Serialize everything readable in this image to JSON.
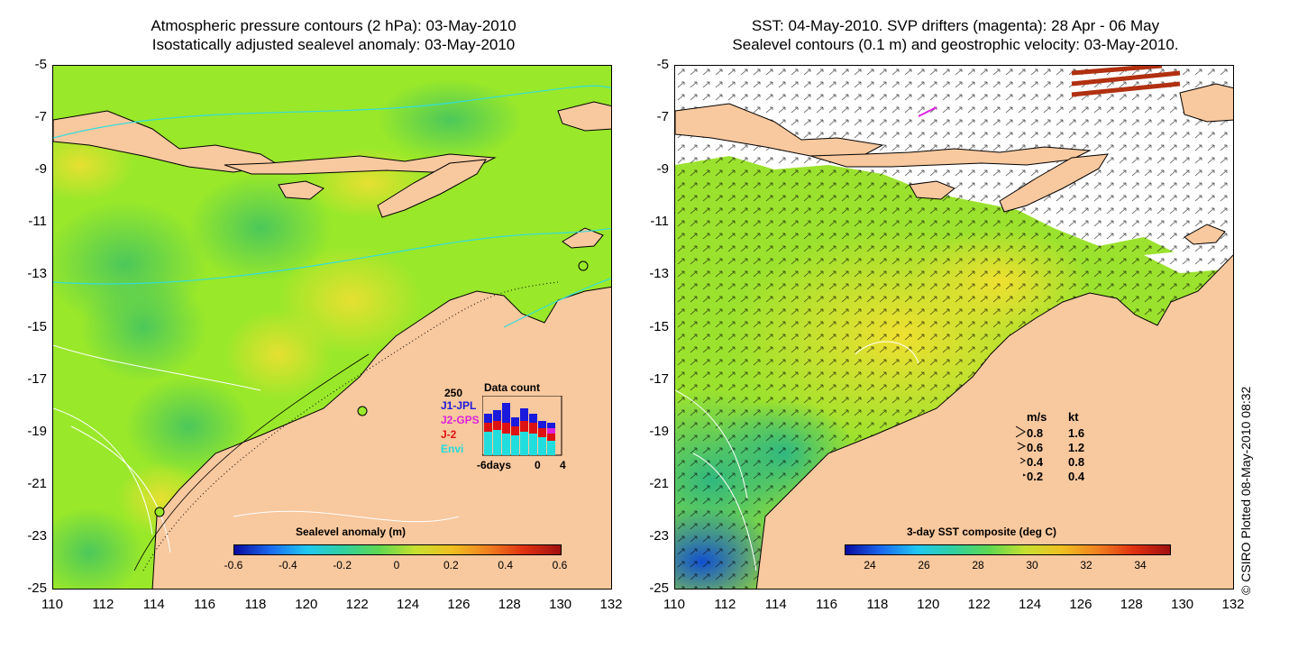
{
  "left_panel": {
    "title_line1": "Atmospheric pressure contours (2 hPa): 03-May-2010",
    "title_line2": "Isostatically adjusted sealevel anomaly: 03-May-2010",
    "colorbar": {
      "label": "Sealevel anomaly (m)",
      "ticks": [
        "-0.6",
        "-0.4",
        "-0.2",
        "0",
        "0.2",
        "0.4",
        "0.6"
      ]
    },
    "data_count": {
      "title": "Data count",
      "ymax_label": "250",
      "series_labels": [
        {
          "text": "J1-JPL",
          "color": "#1a1adc"
        },
        {
          "text": "J2-GPS",
          "color": "#dd22dd"
        },
        {
          "text": "J-2",
          "color": "#dd1111"
        },
        {
          "text": "Envi",
          "color": "#22dddd"
        }
      ],
      "x_labels": [
        "-6days",
        "0",
        "4"
      ]
    }
  },
  "right_panel": {
    "title_line1": "SST: 04-May-2010. SVP drifters (magenta): 28 Apr - 06 May",
    "title_line2": "Sealevel contours (0.1 m) and geostrophic velocity: 03-May-2010.",
    "colorbar": {
      "label": "3-day SST composite (deg C)",
      "ticks": [
        "24",
        "26",
        "28",
        "30",
        "32",
        "34"
      ]
    },
    "velocity_legend": {
      "header_ms": "m/s",
      "header_kt": "kt",
      "rows": [
        {
          "ms": "0.8",
          "kt": "1.6"
        },
        {
          "ms": "0.6",
          "kt": "1.2"
        },
        {
          "ms": "0.4",
          "kt": "0.8"
        },
        {
          "ms": "0.2",
          "kt": "0.4"
        }
      ]
    }
  },
  "axes": {
    "y_ticks": [
      "-5",
      "-7",
      "-9",
      "-11",
      "-13",
      "-15",
      "-17",
      "-19",
      "-21",
      "-23",
      "-25"
    ],
    "x_ticks": [
      "110",
      "112",
      "114",
      "116",
      "118",
      "120",
      "122",
      "124",
      "126",
      "128",
      "130",
      "132"
    ]
  },
  "credit": "© CSIRO Plotted 08-May-2010 08:32",
  "colors": {
    "land": "#f8c89e",
    "sea_anomaly_base": "#99e82a",
    "sst_base": "#9be22e",
    "cloud": "#ffffff"
  }
}
